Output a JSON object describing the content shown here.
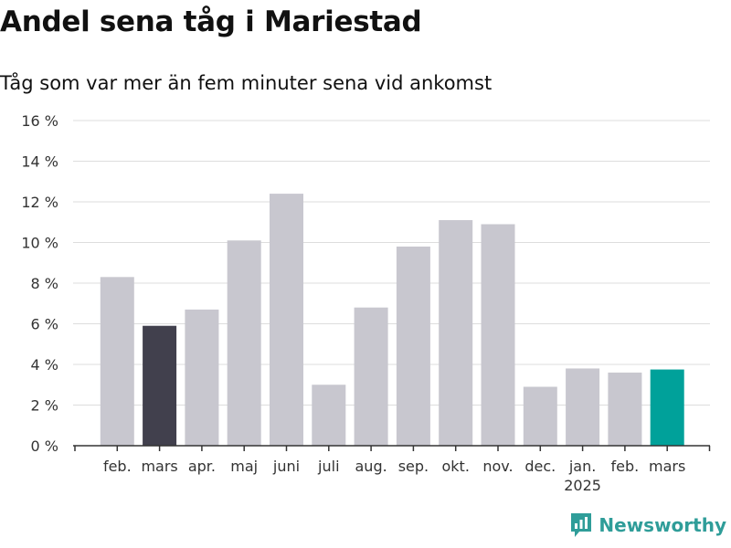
{
  "chart_data": {
    "type": "bar",
    "title": "Andel sena tåg i Mariestad",
    "subtitle": "Tåg som var mer än fem minuter sena vid ankomst",
    "categories": [
      "feb.",
      "mars",
      "apr.",
      "maj",
      "juni",
      "juli",
      "aug.",
      "sep.",
      "okt.",
      "nov.",
      "dec.",
      "jan.",
      "feb.",
      "mars"
    ],
    "year_labels": [
      "",
      "",
      "",
      "",
      "",
      "",
      "",
      "",
      "",
      "",
      "",
      "2025",
      "",
      ""
    ],
    "values": [
      8.3,
      5.9,
      6.7,
      10.1,
      12.4,
      3.0,
      6.8,
      9.8,
      11.1,
      10.9,
      2.9,
      3.8,
      3.6,
      3.75
    ],
    "y_ticks": [
      0,
      2,
      4,
      6,
      8,
      10,
      12,
      14,
      16
    ],
    "y_tick_suffix": " %",
    "ylim": [
      0,
      16
    ],
    "grid": true,
    "colors": {
      "default": "#c8c7cf",
      "previous_year_highlight": "#41404d",
      "latest_highlight": "#00a19a",
      "grid": "#dddddd",
      "axis": "#333333"
    },
    "highlight": {
      "1": "previous_year_highlight",
      "13": "latest_highlight"
    }
  },
  "branding": {
    "name": "Newsworthy",
    "icon": "newsworthy-logo-icon",
    "color": "#2f9d99"
  }
}
